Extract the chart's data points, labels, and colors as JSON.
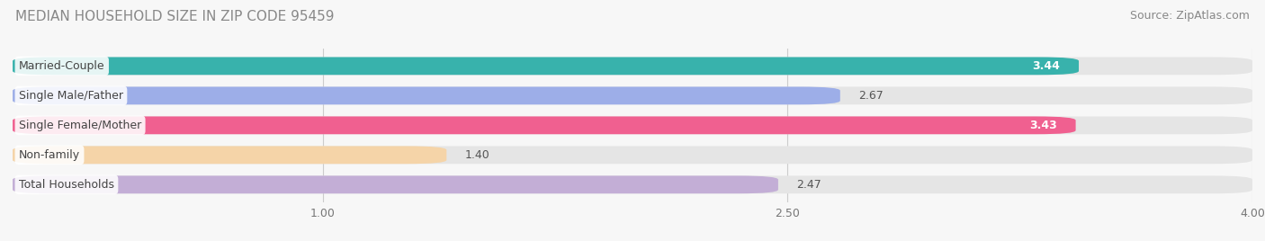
{
  "title": "MEDIAN HOUSEHOLD SIZE IN ZIP CODE 95459",
  "source": "Source: ZipAtlas.com",
  "categories": [
    "Married-Couple",
    "Single Male/Father",
    "Single Female/Mother",
    "Non-family",
    "Total Households"
  ],
  "values": [
    3.44,
    2.67,
    3.43,
    1.4,
    2.47
  ],
  "bar_colors": [
    "#38b2ac",
    "#9daee8",
    "#f06090",
    "#f5d4a8",
    "#c3aed6"
  ],
  "xmin": 0.0,
  "xmax": 4.0,
  "xticks": [
    1.0,
    2.5,
    4.0
  ],
  "xticklabels": [
    "1.00",
    "2.50",
    "4.00"
  ],
  "background_color": "#f7f7f7",
  "bar_bg_color": "#e5e5e5",
  "title_fontsize": 11,
  "source_fontsize": 9,
  "label_fontsize": 9,
  "value_fontsize": 9,
  "value_inside_threshold": 3.0
}
